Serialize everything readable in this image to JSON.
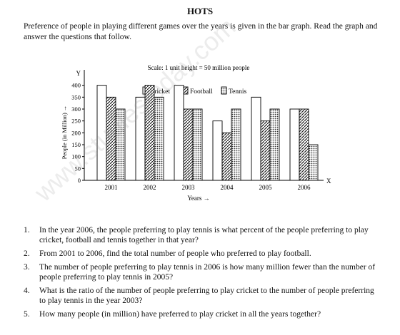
{
  "heading": "HOTS",
  "intro": "Preference of people in playing different games over the years is given in the bar graph. Read the graph and answer the questions that follow.",
  "chart_data": {
    "type": "bar",
    "title": "Scale: 1 unit height = 50 million people",
    "ylabel": "People (in Million) →",
    "xlabel": "Years →",
    "y_axis_letter": "Y",
    "x_axis_letter": "X",
    "categories": [
      "2001",
      "2002",
      "2003",
      "2004",
      "2005",
      "2006"
    ],
    "yticks": [
      "0",
      "50",
      "100",
      "150",
      "200",
      "250",
      "300",
      "350",
      "400"
    ],
    "ylim": [
      0,
      450
    ],
    "series": [
      {
        "name": "Cricket",
        "values": [
          400,
          350,
          400,
          250,
          350,
          300
        ]
      },
      {
        "name": "Football",
        "values": [
          350,
          400,
          300,
          200,
          250,
          300
        ]
      },
      {
        "name": "Tennis",
        "values": [
          300,
          350,
          300,
          300,
          300,
          150
        ]
      }
    ],
    "legend": "top"
  },
  "questions": [
    {
      "num": "1.",
      "text": "In the year 2006, the people preferring to play tennis is what percent of the people preferring to play cricket, football and tennis together in that year?"
    },
    {
      "num": "2.",
      "text": "From 2001 to 2006, find the total number of people who preferred to play football."
    },
    {
      "num": "3.",
      "text": "The number of people preferring to play tennis in 2006 is how many million fewer than the number of people preferring to play tennis in 2005?"
    },
    {
      "num": "4.",
      "text": "What is the ratio of the number of people preferring to play cricket to the number of people preferring to play tennis in the year 2003?"
    },
    {
      "num": "5.",
      "text": "How many people (in million) have preferred to play cricket in all the years together?"
    }
  ],
  "watermark": "www.studiestoday.com"
}
